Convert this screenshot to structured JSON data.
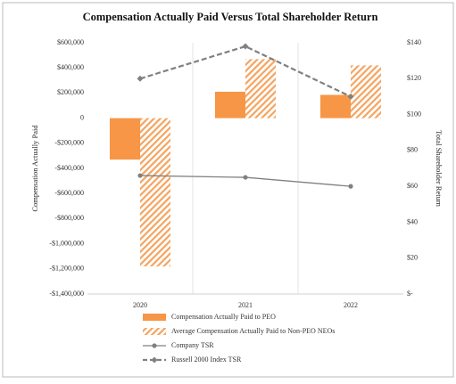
{
  "chart_data": {
    "type": "bar-line",
    "title": "Compensation Actually Paid Versus Total Shareholder Return",
    "ylabel": "Compensation Actually Paid",
    "y2label": "Total Shareholder Return",
    "categories": [
      "2020",
      "2021",
      "2022"
    ],
    "ylim": [
      -1400000,
      600000
    ],
    "yticks": [
      {
        "value": 600000,
        "label": "$600,000"
      },
      {
        "value": 400000,
        "label": "$400,000"
      },
      {
        "value": 200000,
        "label": "$200,000"
      },
      0,
      {
        "value": -200000,
        "label": "-$200,000"
      },
      {
        "value": -400000,
        "label": "-$400,000"
      },
      {
        "value": -600000,
        "label": "-$600,000"
      },
      {
        "value": -800000,
        "label": "-$800,000"
      },
      {
        "value": -1000000,
        "label": "-$1,000,000"
      },
      {
        "value": -1200000,
        "label": "-$1,200,000"
      },
      {
        "value": -1400000,
        "label": "-$1,400,000"
      }
    ],
    "y2lim": [
      0,
      140
    ],
    "y2ticks": [
      {
        "value": 140,
        "label": "$140"
      },
      {
        "value": 120,
        "label": "$120"
      },
      {
        "value": 100,
        "label": "$100"
      },
      {
        "value": 80,
        "label": "$80"
      },
      {
        "value": 60,
        "label": "$60"
      },
      {
        "value": 40,
        "label": "$40"
      },
      {
        "value": 20,
        "label": "$20"
      },
      {
        "value": 0,
        "label": "$-"
      }
    ],
    "series": [
      {
        "name": "Compensation Actually Paid to PEO",
        "kind": "bar",
        "fill": "solid",
        "color": "#f79646",
        "values": [
          -330000,
          210000,
          185000
        ]
      },
      {
        "name": "Average Compensation Actually Paid to Non-PEO NEOs",
        "kind": "bar",
        "fill": "hatched",
        "color": "#f4a460",
        "values": [
          -1180000,
          470000,
          420000
        ]
      },
      {
        "name": "Company TSR",
        "kind": "line",
        "axis": "y2",
        "dashed": false,
        "marker": "circle",
        "color": "#808080",
        "values": [
          66,
          65,
          60
        ]
      },
      {
        "name": "Russell 2000 Index TSR",
        "kind": "line",
        "axis": "y2",
        "dashed": true,
        "marker": "diamond",
        "color": "#808080",
        "values": [
          120,
          138,
          110
        ]
      }
    ]
  }
}
